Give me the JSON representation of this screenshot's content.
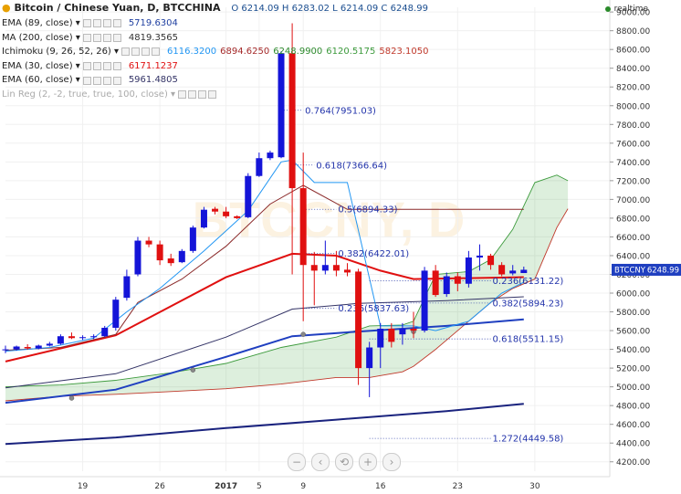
{
  "header": {
    "symbol_title": "Bitcoin / Chinese Yuan, D, BTCCHINA",
    "ohlc": "O 6214.09 H 6283.02 L 6214.09 C 6248.99",
    "realtime": "realtime"
  },
  "legend": [
    {
      "name": "EMA (89, close)",
      "values": [
        "5719.6304"
      ],
      "colors": [
        "#1f3fa0"
      ]
    },
    {
      "name": "MA (200, close)",
      "values": [
        "4819.3565"
      ],
      "colors": [
        "#333333"
      ]
    },
    {
      "name": "Ichimoku (9, 26, 52, 26)",
      "values": [
        "6116.3200",
        "6894.6250",
        "6248.9900",
        "6120.5175",
        "5823.1050"
      ],
      "colors": [
        "#2196f3",
        "#a52a2a",
        "#2e8b2e",
        "#3d9b3d",
        "#c0392b"
      ]
    },
    {
      "name": "EMA (30, close)",
      "values": [
        "6171.1237"
      ],
      "colors": [
        "#e01010"
      ]
    },
    {
      "name": "EMA (60, close)",
      "values": [
        "5961.4805"
      ],
      "colors": [
        "#333366"
      ]
    },
    {
      "name": "Lin Reg (2, -2, true, true, 100, close)",
      "values": [],
      "colors": [
        "#999999"
      ]
    }
  ],
  "nav": {
    "zoom_out": "−",
    "scroll_left": "‹",
    "reset": "⟲",
    "zoom_in": "+",
    "scroll_right": "›"
  },
  "watermark": "BTCCNY, D",
  "chart_data": {
    "type": "candlestick",
    "symbol_label": "BTCCNY",
    "last_price_label": "6248.99",
    "y_axis": {
      "min": 4200,
      "max": 9000,
      "ticks": [
        "4200.00",
        "4400.00",
        "4600.00",
        "4800.00",
        "5000.00",
        "5200.00",
        "5400.00",
        "5600.00",
        "5800.00",
        "6000.00",
        "6200.00",
        "6400.00",
        "6600.00",
        "6800.00",
        "7000.00",
        "7200.00",
        "7400.00",
        "7600.00",
        "7800.00",
        "8000.00",
        "8200.00",
        "8400.00",
        "8600.00",
        "8800.00",
        "9000.00"
      ]
    },
    "x_axis": {
      "ticks": [
        {
          "label": "19",
          "day": 7
        },
        {
          "label": "26",
          "day": 14
        },
        {
          "label": "2017",
          "day": 20
        },
        {
          "label": "5",
          "day": 23
        },
        {
          "label": "9",
          "day": 27
        },
        {
          "label": "16",
          "day": 34
        },
        {
          "label": "23",
          "day": 41
        },
        {
          "label": "30",
          "day": 48
        }
      ],
      "day_range": [
        0,
        52
      ]
    },
    "candles": [
      {
        "d": 0,
        "o": 5390,
        "h": 5440,
        "l": 5360,
        "c": 5400
      },
      {
        "d": 1,
        "o": 5400,
        "h": 5440,
        "l": 5385,
        "c": 5430
      },
      {
        "d": 2,
        "o": 5425,
        "h": 5455,
        "l": 5395,
        "c": 5410
      },
      {
        "d": 3,
        "o": 5410,
        "h": 5450,
        "l": 5400,
        "c": 5440
      },
      {
        "d": 4,
        "o": 5440,
        "h": 5480,
        "l": 5430,
        "c": 5460
      },
      {
        "d": 5,
        "o": 5460,
        "h": 5560,
        "l": 5450,
        "c": 5540
      },
      {
        "d": 6,
        "o": 5540,
        "h": 5580,
        "l": 5510,
        "c": 5520
      },
      {
        "d": 7,
        "o": 5520,
        "h": 5550,
        "l": 5500,
        "c": 5530
      },
      {
        "d": 8,
        "o": 5530,
        "h": 5560,
        "l": 5510,
        "c": 5540
      },
      {
        "d": 9,
        "o": 5540,
        "h": 5650,
        "l": 5530,
        "c": 5630
      },
      {
        "d": 10,
        "o": 5630,
        "h": 5960,
        "l": 5600,
        "c": 5930
      },
      {
        "d": 11,
        "o": 5950,
        "h": 6250,
        "l": 5920,
        "c": 6180
      },
      {
        "d": 12,
        "o": 6200,
        "h": 6600,
        "l": 6180,
        "c": 6560
      },
      {
        "d": 13,
        "o": 6560,
        "h": 6600,
        "l": 6490,
        "c": 6520
      },
      {
        "d": 14,
        "o": 6520,
        "h": 6560,
        "l": 6300,
        "c": 6350
      },
      {
        "d": 15,
        "o": 6370,
        "h": 6420,
        "l": 6290,
        "c": 6320
      },
      {
        "d": 16,
        "o": 6330,
        "h": 6470,
        "l": 6320,
        "c": 6450
      },
      {
        "d": 17,
        "o": 6450,
        "h": 6720,
        "l": 6430,
        "c": 6700
      },
      {
        "d": 18,
        "o": 6700,
        "h": 6920,
        "l": 6690,
        "c": 6890
      },
      {
        "d": 19,
        "o": 6900,
        "h": 6920,
        "l": 6840,
        "c": 6870
      },
      {
        "d": 20,
        "o": 6870,
        "h": 6920,
        "l": 6800,
        "c": 6820
      },
      {
        "d": 21,
        "o": 6820,
        "h": 6830,
        "l": 6790,
        "c": 6800
      },
      {
        "d": 22,
        "o": 6810,
        "h": 7280,
        "l": 6800,
        "c": 7250
      },
      {
        "d": 23,
        "o": 7250,
        "h": 7500,
        "l": 7240,
        "c": 7440
      },
      {
        "d": 24,
        "o": 7440,
        "h": 7520,
        "l": 7420,
        "c": 7500
      },
      {
        "d": 25,
        "o": 7450,
        "h": 8580,
        "l": 7440,
        "c": 8560
      },
      {
        "d": 26,
        "o": 8560,
        "h": 8880,
        "l": 6200,
        "c": 7120
      },
      {
        "d": 27,
        "o": 7120,
        "h": 7500,
        "l": 5700,
        "c": 6300
      },
      {
        "d": 28,
        "o": 6300,
        "h": 6440,
        "l": 5870,
        "c": 6240
      },
      {
        "d": 29,
        "o": 6240,
        "h": 6560,
        "l": 6200,
        "c": 6300
      },
      {
        "d": 30,
        "o": 6300,
        "h": 6450,
        "l": 6180,
        "c": 6240
      },
      {
        "d": 31,
        "o": 6250,
        "h": 6320,
        "l": 6180,
        "c": 6220
      },
      {
        "d": 32,
        "o": 6230,
        "h": 6260,
        "l": 5020,
        "c": 5200
      },
      {
        "d": 33,
        "o": 5200,
        "h": 5480,
        "l": 4890,
        "c": 5420
      },
      {
        "d": 34,
        "o": 5420,
        "h": 5680,
        "l": 5200,
        "c": 5620
      },
      {
        "d": 35,
        "o": 5620,
        "h": 5680,
        "l": 5420,
        "c": 5480
      },
      {
        "d": 36,
        "o": 5560,
        "h": 5680,
        "l": 5450,
        "c": 5620
      },
      {
        "d": 37,
        "o": 5620,
        "h": 5800,
        "l": 5520,
        "c": 5600
      },
      {
        "d": 38,
        "o": 5600,
        "h": 6280,
        "l": 5580,
        "c": 6240
      },
      {
        "d": 39,
        "o": 6240,
        "h": 6300,
        "l": 5960,
        "c": 5980
      },
      {
        "d": 40,
        "o": 5990,
        "h": 6220,
        "l": 5960,
        "c": 6180
      },
      {
        "d": 41,
        "o": 6180,
        "h": 6220,
        "l": 6020,
        "c": 6100
      },
      {
        "d": 42,
        "o": 6100,
        "h": 6450,
        "l": 6060,
        "c": 6380
      },
      {
        "d": 43,
        "o": 6380,
        "h": 6520,
        "l": 6240,
        "c": 6400
      },
      {
        "d": 44,
        "o": 6400,
        "h": 6420,
        "l": 6250,
        "c": 6300
      },
      {
        "d": 45,
        "o": 6300,
        "h": 6330,
        "l": 6180,
        "c": 6200
      },
      {
        "d": 46,
        "o": 6210,
        "h": 6300,
        "l": 6190,
        "c": 6240
      },
      {
        "d": 47,
        "o": 6214.09,
        "h": 6283.02,
        "l": 6214.09,
        "c": 6248.99
      }
    ],
    "fib_levels": [
      {
        "label": "0.764(7951.03)",
        "value": 7951.03,
        "from": 25,
        "to": 27
      },
      {
        "label": "0.618(7366.64)",
        "value": 7366.64,
        "from": 26,
        "to": 28
      },
      {
        "label": "0.5(6894.33)",
        "value": 6894.33,
        "from": 27,
        "to": 30
      },
      {
        "label": "0.382(6422.01)",
        "value": 6422.01,
        "from": 27,
        "to": 30
      },
      {
        "label": "0.236(5837.63)",
        "value": 5837.63,
        "from": 27,
        "to": 30
      },
      {
        "label": "0.236(6131.22)",
        "value": 6131.22,
        "from": 33,
        "to": 44
      },
      {
        "label": "0.382(5894.23)",
        "value": 5894.23,
        "from": 33,
        "to": 44
      },
      {
        "label": "0.618(5511.15)",
        "value": 5511.15,
        "from": 33,
        "to": 44
      },
      {
        "label": "1.272(4449.58)",
        "value": 4449.58,
        "from": 33,
        "to": 44
      }
    ],
    "ma200": [
      [
        0,
        4390
      ],
      [
        10,
        4460
      ],
      [
        20,
        4560
      ],
      [
        30,
        4650
      ],
      [
        40,
        4740
      ],
      [
        47,
        4819
      ]
    ],
    "ema89": [
      [
        0,
        4830
      ],
      [
        10,
        4970
      ],
      [
        20,
        5320
      ],
      [
        26,
        5540
      ],
      [
        32,
        5590
      ],
      [
        40,
        5650
      ],
      [
        47,
        5720
      ]
    ],
    "ema60": [
      [
        0,
        4990
      ],
      [
        10,
        5140
      ],
      [
        20,
        5530
      ],
      [
        26,
        5830
      ],
      [
        32,
        5890
      ],
      [
        40,
        5920
      ],
      [
        47,
        5961
      ]
    ],
    "ema30": [
      [
        0,
        5270
      ],
      [
        10,
        5550
      ],
      [
        20,
        6170
      ],
      [
        26,
        6420
      ],
      [
        30,
        6400
      ],
      [
        34,
        6240
      ],
      [
        37,
        6150
      ],
      [
        42,
        6160
      ],
      [
        47,
        6171
      ]
    ],
    "ichimoku": {
      "tenkan": [
        [
          0,
          5380
        ],
        [
          4,
          5420
        ],
        [
          8,
          5520
        ],
        [
          11,
          5800
        ],
        [
          14,
          6050
        ],
        [
          18,
          6450
        ],
        [
          22,
          6880
        ],
        [
          25,
          7400
        ],
        [
          26,
          7420
        ],
        [
          28,
          7180
        ],
        [
          31,
          7180
        ],
        [
          34,
          5650
        ],
        [
          37,
          5650
        ],
        [
          39,
          5600
        ],
        [
          42,
          5700
        ],
        [
          45,
          6000
        ],
        [
          47,
          6116
        ]
      ],
      "kijun": [
        [
          0,
          5390
        ],
        [
          5,
          5420
        ],
        [
          10,
          5560
        ],
        [
          12,
          5900
        ],
        [
          16,
          6150
        ],
        [
          20,
          6500
        ],
        [
          24,
          6950
        ],
        [
          27,
          7150
        ],
        [
          31,
          6894
        ],
        [
          47,
          6894
        ]
      ],
      "span_a": [
        [
          0,
          5000
        ],
        [
          5,
          5020
        ],
        [
          10,
          5070
        ],
        [
          15,
          5150
        ],
        [
          20,
          5250
        ],
        [
          25,
          5420
        ],
        [
          30,
          5530
        ],
        [
          33,
          5650
        ],
        [
          36,
          5660
        ],
        [
          37,
          5700
        ],
        [
          39,
          6200
        ],
        [
          42,
          6230
        ],
        [
          44,
          6360
        ],
        [
          46,
          6680
        ],
        [
          48,
          7180
        ],
        [
          50,
          7260
        ],
        [
          51,
          7200
        ]
      ],
      "span_b": [
        [
          0,
          4850
        ],
        [
          5,
          4900
        ],
        [
          10,
          4920
        ],
        [
          15,
          4950
        ],
        [
          20,
          4980
        ],
        [
          25,
          5030
        ],
        [
          30,
          5100
        ],
        [
          33,
          5100
        ],
        [
          36,
          5160
        ],
        [
          37,
          5220
        ],
        [
          39,
          5400
        ],
        [
          42,
          5700
        ],
        [
          44,
          5900
        ],
        [
          46,
          6050
        ],
        [
          48,
          6150
        ],
        [
          50,
          6700
        ],
        [
          51,
          6900
        ]
      ],
      "kijun_dots": [
        [
          6,
          4880
        ],
        [
          17,
          5180
        ],
        [
          27,
          5560
        ],
        [
          37,
          5590
        ]
      ]
    },
    "title": "Bitcoin / Chinese Yuan, D, BTCCHINA"
  }
}
